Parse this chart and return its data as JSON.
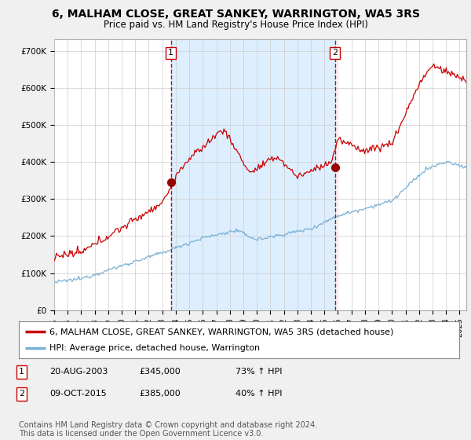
{
  "title": "6, MALHAM CLOSE, GREAT SANKEY, WARRINGTON, WA5 3RS",
  "subtitle": "Price paid vs. HM Land Registry's House Price Index (HPI)",
  "ylabel_ticks": [
    "£0",
    "£100K",
    "£200K",
    "£300K",
    "£400K",
    "£500K",
    "£600K",
    "£700K"
  ],
  "ytick_values": [
    0,
    100000,
    200000,
    300000,
    400000,
    500000,
    600000,
    700000
  ],
  "ylim": [
    0,
    730000
  ],
  "xlim_start": 1995.0,
  "xlim_end": 2025.5,
  "sale1_x": 2003.64,
  "sale1_y": 345000,
  "sale2_x": 2015.78,
  "sale2_y": 385000,
  "vline1_x": 2003.64,
  "vline2_x": 2015.78,
  "red_line_color": "#cc0000",
  "blue_line_color": "#7ab0d4",
  "vline_color": "#cc0000",
  "shade_color": "#ddeeff",
  "background_color": "#f0f0f0",
  "plot_bg_color": "#ffffff",
  "legend_line1": "6, MALHAM CLOSE, GREAT SANKEY, WARRINGTON, WA5 3RS (detached house)",
  "legend_line2": "HPI: Average price, detached house, Warrington",
  "note1_date": "20-AUG-2003",
  "note1_price": "£345,000",
  "note1_hpi": "73% ↑ HPI",
  "note2_date": "09-OCT-2015",
  "note2_price": "£385,000",
  "note2_hpi": "40% ↑ HPI",
  "copyright": "Contains HM Land Registry data © Crown copyright and database right 2024.\nThis data is licensed under the Open Government Licence v3.0.",
  "title_fontsize": 10,
  "subtitle_fontsize": 8.5,
  "tick_fontsize": 7.5,
  "legend_fontsize": 8,
  "note_fontsize": 8,
  "copyright_fontsize": 7
}
